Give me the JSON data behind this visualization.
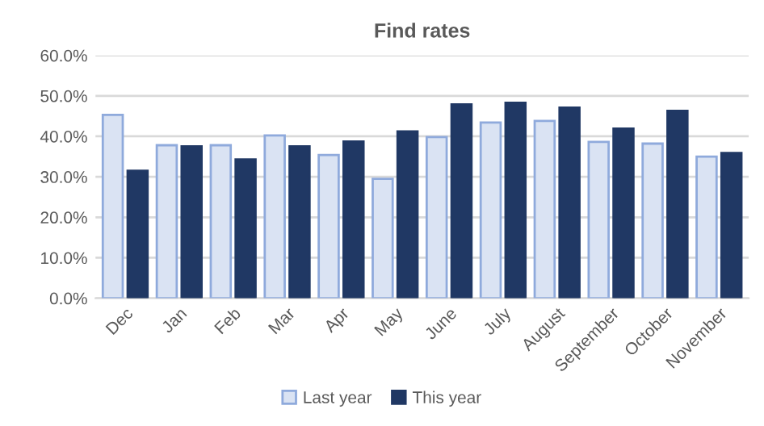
{
  "chart_data": {
    "type": "bar",
    "title": "Find rates",
    "categories": [
      "Dec",
      "Jan",
      "Feb",
      "Mar",
      "Apr",
      "May",
      "June",
      "July",
      "August",
      "September",
      "October",
      "November"
    ],
    "series": [
      {
        "name": "Last year",
        "color": "#dae3f3",
        "values": [
          45.3,
          37.8,
          37.8,
          40.2,
          35.4,
          29.5,
          39.8,
          43.4,
          43.8,
          38.6,
          38.2,
          35.0
        ]
      },
      {
        "name": "This year",
        "color": "#203864",
        "values": [
          31.5,
          37.5,
          34.3,
          37.5,
          38.7,
          41.2,
          47.9,
          48.3,
          47.1,
          41.9,
          46.3,
          35.9
        ]
      }
    ],
    "ylim": [
      0,
      60
    ],
    "yticks": [
      {
        "value": 0,
        "label": "0.0%"
      },
      {
        "value": 10,
        "label": "10.0%"
      },
      {
        "value": 20,
        "label": "20.0%"
      },
      {
        "value": 30,
        "label": "30.0%"
      },
      {
        "value": 40,
        "label": "40.0%"
      },
      {
        "value": 50,
        "label": "50.0%"
      },
      {
        "value": 60,
        "label": "60.0%"
      }
    ],
    "grid": "y",
    "legend": "bottom"
  }
}
